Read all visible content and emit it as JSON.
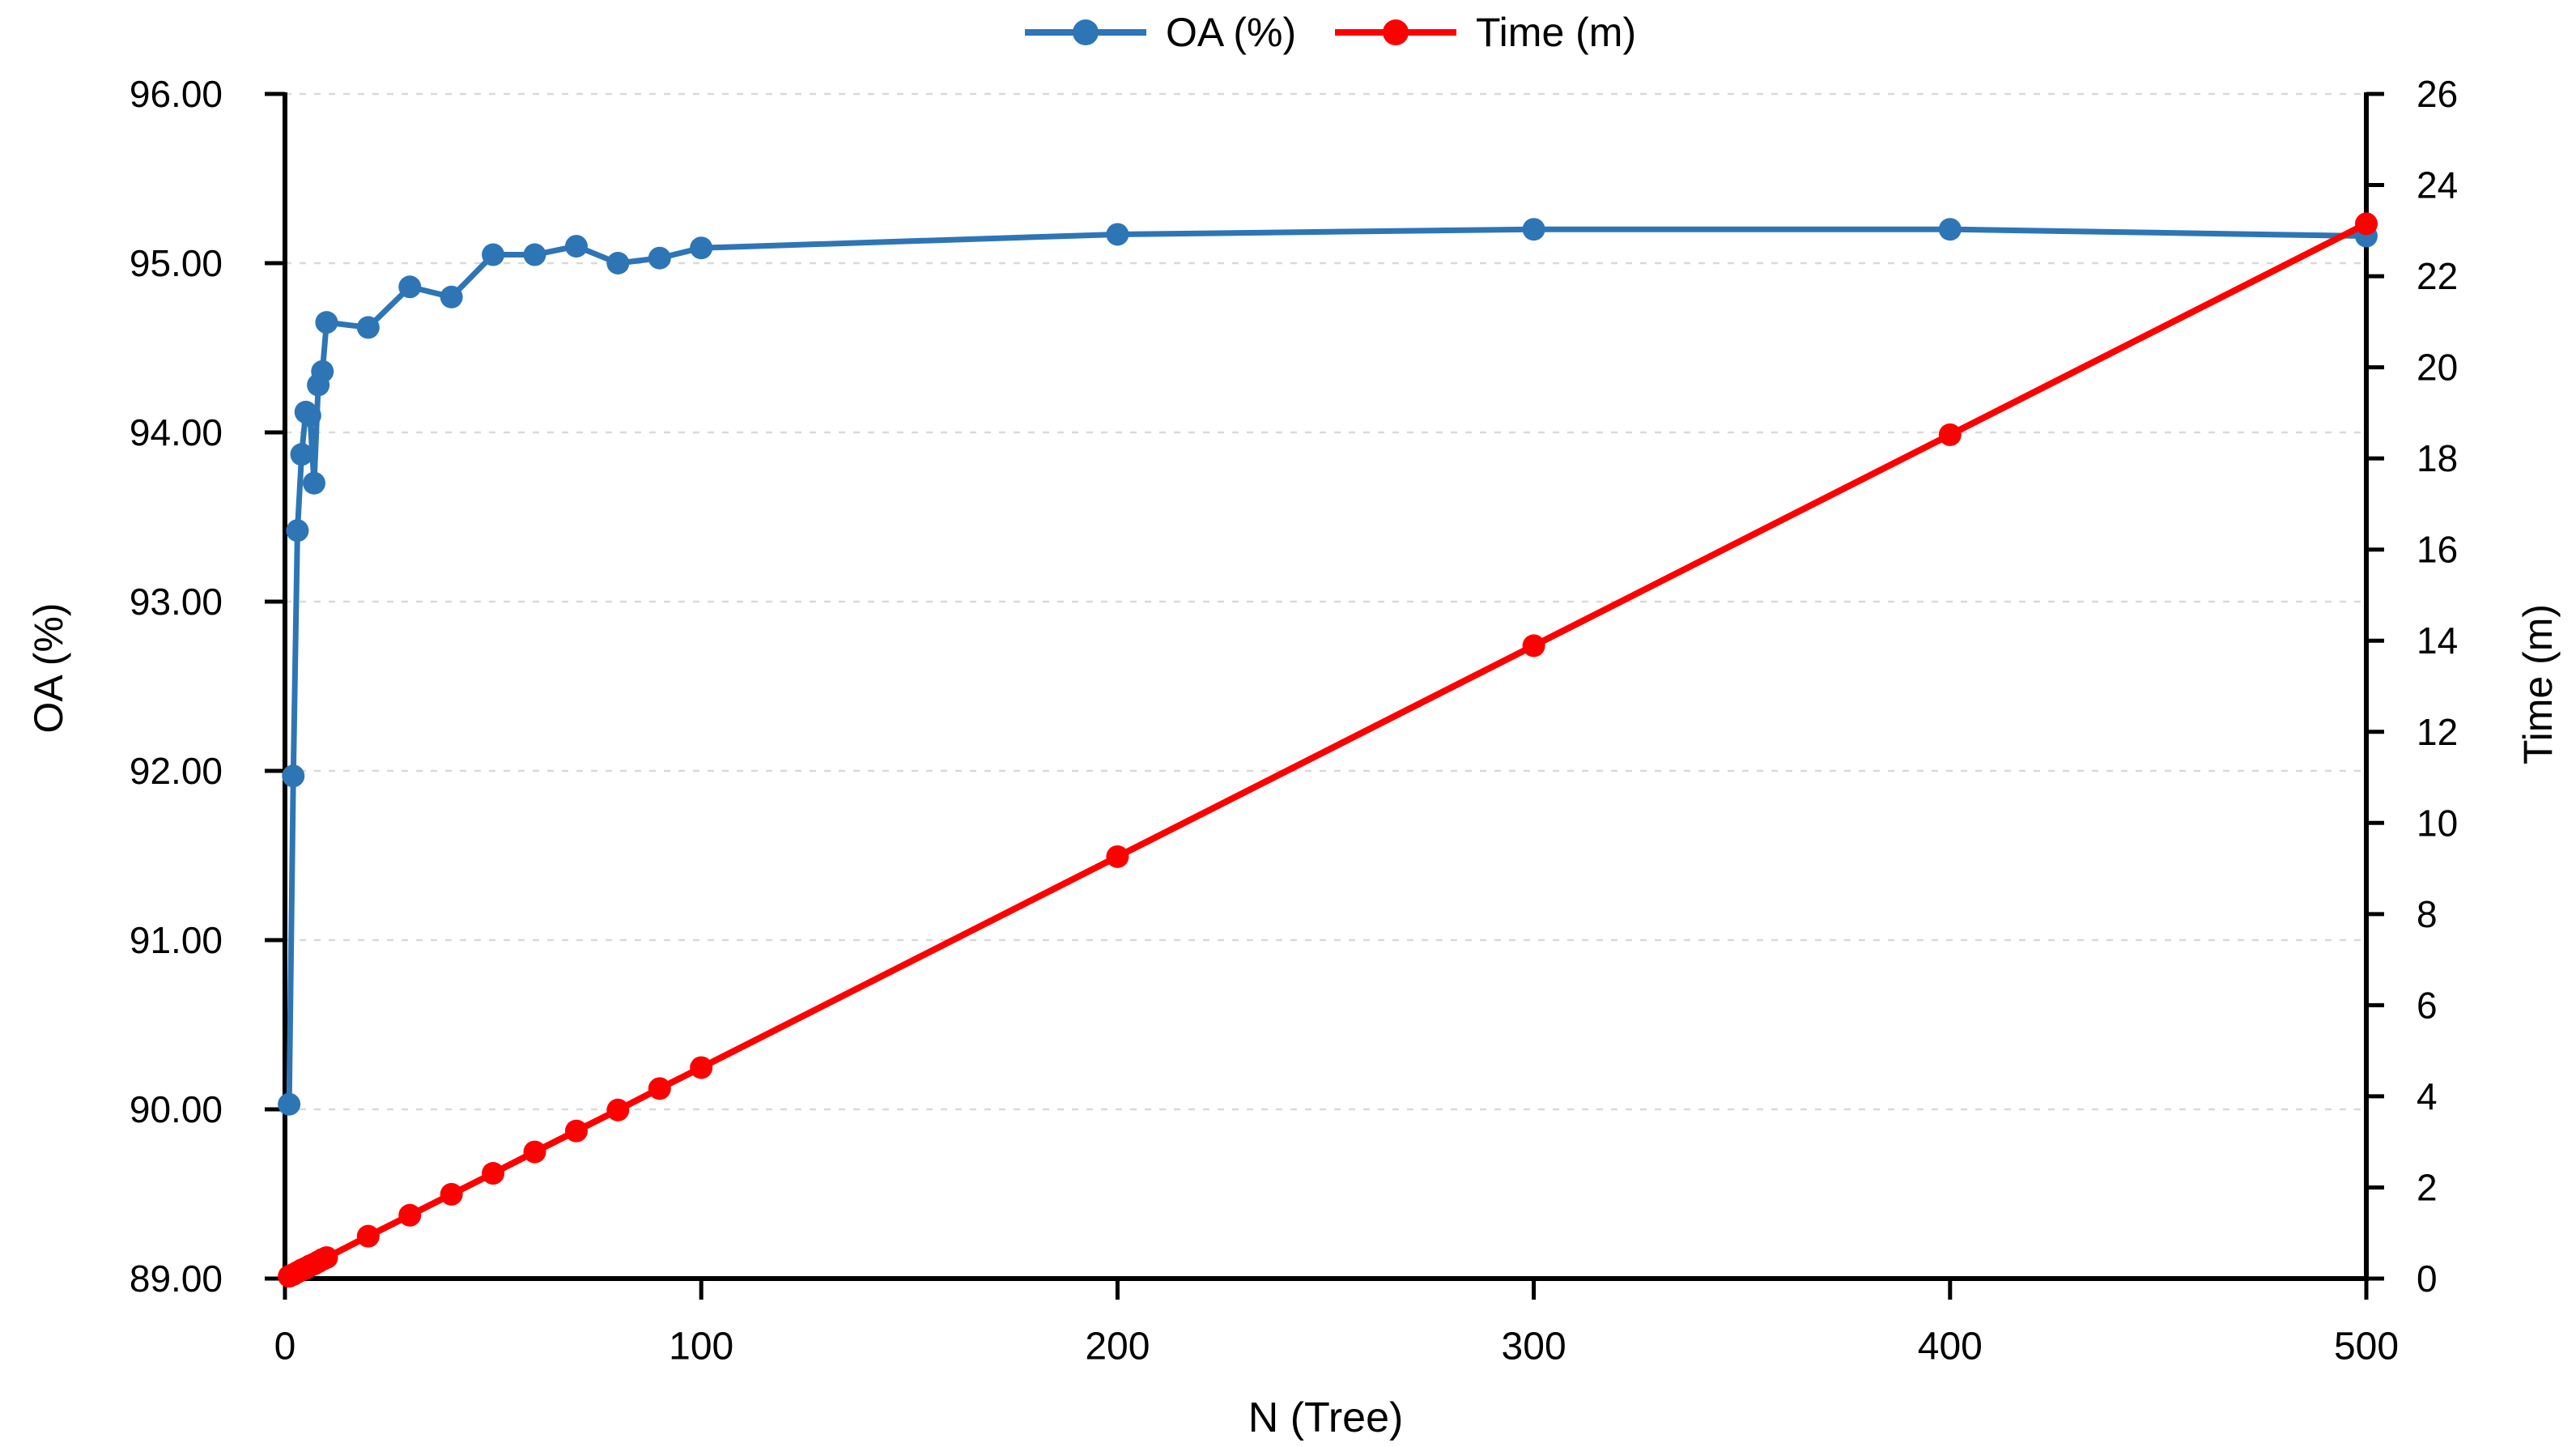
{
  "chart_data": {
    "type": "line",
    "title": "",
    "xlabel": "N (Tree)",
    "x": [
      1,
      2,
      3,
      4,
      5,
      6,
      7,
      8,
      9,
      10,
      20,
      30,
      40,
      50,
      60,
      70,
      80,
      90,
      100,
      200,
      300,
      400,
      500
    ],
    "xlim": [
      0,
      500
    ],
    "x_ticks": [
      0,
      100,
      200,
      300,
      400,
      500
    ],
    "series": [
      {
        "name": "OA (%)",
        "axis": "left",
        "color": "#2E75B6",
        "marker": "circle",
        "values": [
          90.03,
          91.97,
          93.42,
          93.87,
          94.12,
          94.1,
          93.7,
          94.28,
          94.36,
          94.65,
          94.62,
          94.86,
          94.8,
          95.05,
          95.05,
          95.1,
          95.0,
          95.03,
          95.09,
          95.17,
          95.2,
          95.2,
          95.16
        ]
      },
      {
        "name": "Time (m)",
        "axis": "right",
        "color": "#FF0000",
        "marker": "circle",
        "values": [
          0.05,
          0.09,
          0.14,
          0.19,
          0.23,
          0.28,
          0.32,
          0.37,
          0.42,
          0.46,
          0.93,
          1.39,
          1.85,
          2.31,
          2.78,
          3.24,
          3.7,
          4.17,
          4.63,
          9.26,
          13.89,
          18.52,
          23.15
        ]
      }
    ],
    "left_axis": {
      "title": "OA (%)",
      "min": 89,
      "max": 96,
      "ticks": [
        89,
        90,
        91,
        92,
        93,
        94,
        95,
        96
      ],
      "tick_labels": [
        "89.00",
        "90.00",
        "91.00",
        "92.00",
        "93.00",
        "94.00",
        "95.00",
        "96.00"
      ]
    },
    "right_axis": {
      "title": "Time (m)",
      "min": 0,
      "max": 26,
      "ticks": [
        0,
        2,
        4,
        6,
        8,
        10,
        12,
        14,
        16,
        18,
        20,
        22,
        24,
        26
      ]
    },
    "grid": "horizontal-dashed",
    "legend_position": "top-center"
  },
  "legend": {
    "items": [
      {
        "label": "OA (%)",
        "color": "#2E75B6"
      },
      {
        "label": "Time (m)",
        "color": "#FF0000"
      }
    ]
  },
  "colors": {
    "oa_series": "#2E75B6",
    "time_series": "#FF0000",
    "gridline": "#D9D9D9",
    "axis": "#000000"
  }
}
